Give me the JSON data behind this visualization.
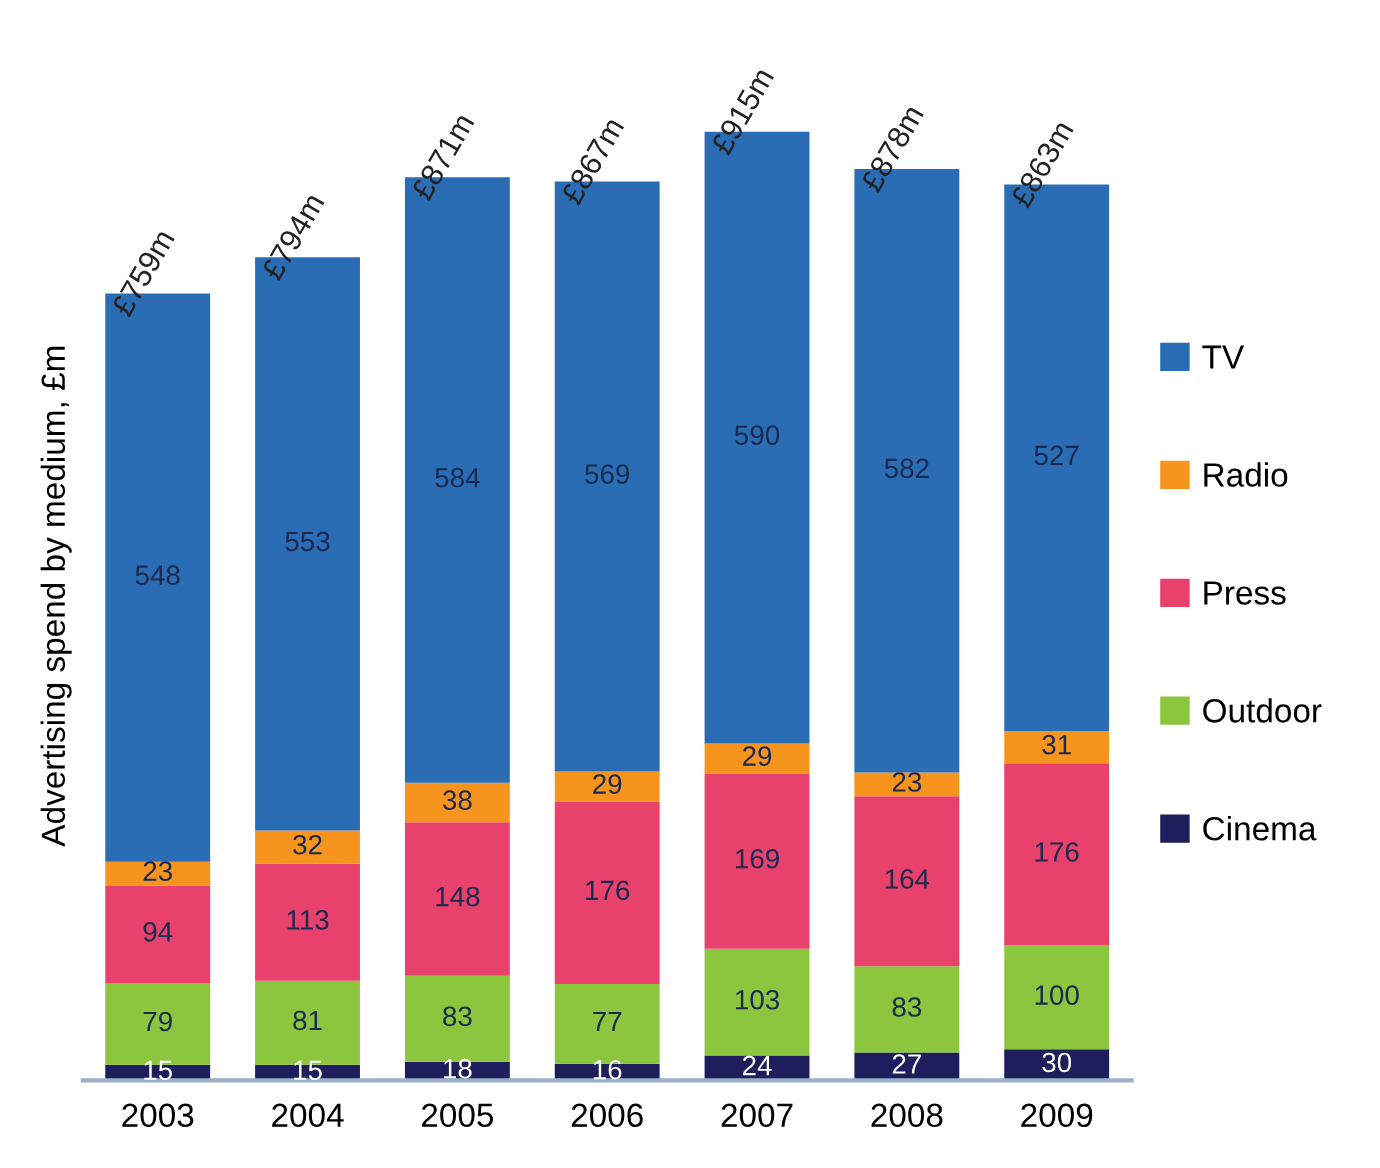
{
  "chart_data": {
    "type": "bar",
    "stacked": true,
    "ylabel": "Advertising spend by medium, £m",
    "categories": [
      "2003",
      "2004",
      "2005",
      "2006",
      "2007",
      "2008",
      "2009"
    ],
    "series": [
      {
        "name": "Cinema",
        "color": "#1e1e5c",
        "values": [
          15,
          15,
          18,
          16,
          24,
          27,
          30
        ]
      },
      {
        "name": "Outdoor",
        "color": "#8cc63f",
        "values": [
          79,
          81,
          83,
          77,
          103,
          83,
          100
        ]
      },
      {
        "name": "Press",
        "color": "#e8416c",
        "values": [
          94,
          113,
          148,
          176,
          169,
          164,
          176
        ]
      },
      {
        "name": "Radio",
        "color": "#f7941d",
        "values": [
          23,
          32,
          38,
          29,
          29,
          23,
          31
        ]
      },
      {
        "name": "TV",
        "color": "#2a6db5",
        "values": [
          548,
          553,
          584,
          569,
          590,
          582,
          527
        ]
      }
    ],
    "data_labels": true,
    "totals": [
      "£759m",
      "£794m",
      "£871m",
      "£867m",
      "£915m",
      "£878m",
      "£863m"
    ],
    "legend": "right",
    "grid": false,
    "tick_labels": "x"
  }
}
